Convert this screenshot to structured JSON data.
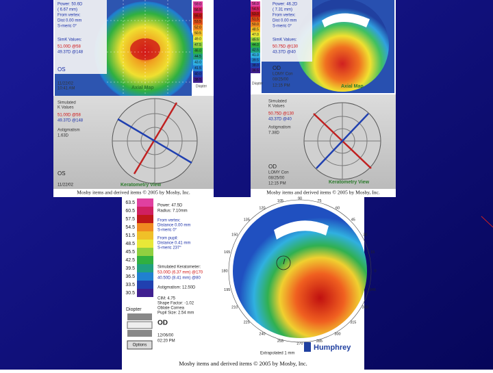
{
  "panels": [
    {
      "map": {
        "power": "Power: 50.6D",
        "radius": "( 6.67 mm)",
        "from_vertex": "From vertex:",
        "dist": "Dist 0.00 mm",
        "smeric": "S-meric 0°",
        "simk_title": "SimK Values:",
        "k1": "51.00D @58",
        "k2": "49.37D @148",
        "eye": "OS",
        "date": "11/22/02",
        "time": "10:41 AM",
        "title": "Axial Map",
        "unit": "Diopter",
        "scale": [
          "59.0",
          "56.5",
          "55.0",
          "53.5",
          "52.0",
          "50.5",
          "49.0",
          "47.5",
          "46.0",
          "44.5",
          "43.0",
          "41.5",
          "40.0",
          "38.5"
        ]
      },
      "kview": {
        "line1": "Simulated",
        "line2": "K Values",
        "k1": "51.00D @58",
        "k2": "49.37D @148",
        "astig_label": "Astigmatism",
        "astig": "1.63D",
        "eye": "OS",
        "date": "11/22/02",
        "title": "Keratometry View"
      },
      "caption": "Mosby items and derived items © 2005 by Mosby, Inc."
    },
    {
      "map": {
        "power": "Power: 46.2D",
        "radius": "( 7.31 mm)",
        "from_vertex": "From vertex:",
        "dist": "Dist 0.00 mm",
        "smeric": "S-meric 0°",
        "simk_title": "SimK Values:",
        "k1": "50.75D @130",
        "k2": "43.37D @40",
        "eye": "OD",
        "patient": "LOMY Con",
        "date": "08/25/00",
        "time": "12:15 PM",
        "title": "Axial Map",
        "unit": "Diopter",
        "scale": [
          "56.0",
          "54.5",
          "53.0",
          "51.5",
          "50.0",
          "48.5",
          "47.0",
          "45.5",
          "44.0",
          "42.5",
          "41.0",
          "39.5",
          "38.0",
          "36.5"
        ]
      },
      "kview": {
        "line1": "Simulated",
        "line2": "K Values",
        "k1": "50.75D @130",
        "k2": "43.37D @40",
        "astig_label": "Astigmatism",
        "astig": "7.38D",
        "eye": "OD",
        "patient": "LOMY Con",
        "date": "08/25/00",
        "time": "12:15 PM",
        "title": "Keratometry View"
      },
      "caption": "Mosby items and derived items © 2005 by Mosby, Inc."
    }
  ],
  "bottom": {
    "scale": [
      "63.5",
      "60.5",
      "57.5",
      "54.5",
      "51.5",
      "48.5",
      "45.5",
      "42.5",
      "39.5",
      "36.5",
      "33.5",
      "30.5"
    ],
    "unit": "Diopter",
    "power": "Power: 47.5D",
    "radius": "Radius: 7.10mm",
    "from_vertex": "From vertex:",
    "vertex_dist": "Distance 0.00 mm",
    "vertex_smeric": "S-meric 0°",
    "from_pupil": "From pupil:",
    "pupil_dist": "Distance 0.41 mm",
    "pupil_smeric": "S-meric 237°",
    "simk_title": "Simulated Keratometer:",
    "k1": "53.00D (6.37 mm) @170",
    "k2": "40.50D (8.41 mm) @80",
    "astig": "Astigmatism: 12.50D",
    "cim": "CIM: 4.75",
    "shape": "Shape Factor: -1.02",
    "oblate": "Oblate Cornea",
    "pupil": "Pupil Size: 2.54 mm",
    "eye": "OD",
    "date": "12/06/00",
    "time": "02:20 PM",
    "options": "Options",
    "extrapolated": "Extrapolated 1 mm",
    "brand": "Humphrey",
    "angles": [
      "90",
      "75",
      "60",
      "45",
      "30",
      "15",
      "0",
      "345",
      "330",
      "315",
      "300",
      "285",
      "270",
      "255",
      "240",
      "225",
      "210",
      "195",
      "180",
      "165",
      "150",
      "135",
      "120",
      "105"
    ],
    "caption": "Mosby items and derived items © 2005 by Mosby, Inc."
  }
}
